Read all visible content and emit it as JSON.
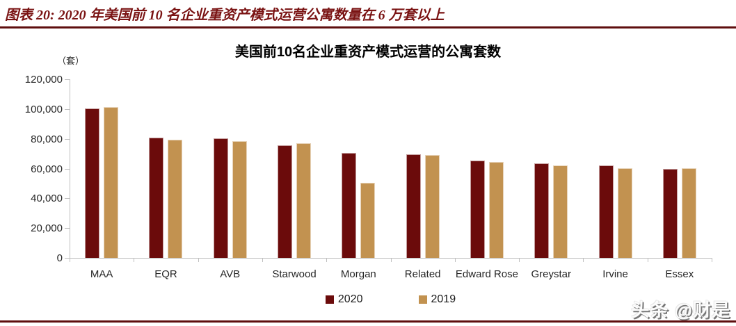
{
  "header": {
    "title": "图表 20: 2020 年美国前 10 名企业重资产模式运营公寓数量在 6 万套以上"
  },
  "watermark": {
    "text": "头条 @财是"
  },
  "colors": {
    "accent_dark_red": "#6B0B0B",
    "accent_tan": "#C29250",
    "header_text": "#7A1313",
    "rule": "#5E0E0E",
    "axis_gray": "#BFBFBF"
  },
  "chart_data": {
    "type": "bar",
    "title": "美国前10名企业重资产模式运营的公寓套数",
    "unit_label": "（套）",
    "xlabel": "",
    "ylabel": "套",
    "categories": [
      "MAA",
      "EQR",
      "AVB",
      "Starwood",
      "Morgan",
      "Related",
      "Edward Rose",
      "Greystar",
      "Irvine",
      "Essex"
    ],
    "series": [
      {
        "name": "2020",
        "color": "#6B0B0B",
        "values": [
          100300,
          80600,
          80200,
          75700,
          70300,
          69400,
          65600,
          63300,
          62200,
          59900
        ]
      },
      {
        "name": "2019",
        "color": "#C29250",
        "values": [
          101500,
          79200,
          78400,
          77000,
          50600,
          69200,
          64300,
          62000,
          60400,
          60300
        ]
      }
    ],
    "ylim": [
      0,
      120000
    ],
    "y_ticks": [
      {
        "value": 0,
        "label": "0"
      },
      {
        "value": 20000,
        "label": "20,000"
      },
      {
        "value": 40000,
        "label": "40,000"
      },
      {
        "value": 60000,
        "label": "60,000"
      },
      {
        "value": 80000,
        "label": "80,000"
      },
      {
        "value": 100000,
        "label": "100,000"
      },
      {
        "value": 120000,
        "label": "120,000"
      }
    ],
    "grid": false,
    "legend_position": "bottom"
  }
}
